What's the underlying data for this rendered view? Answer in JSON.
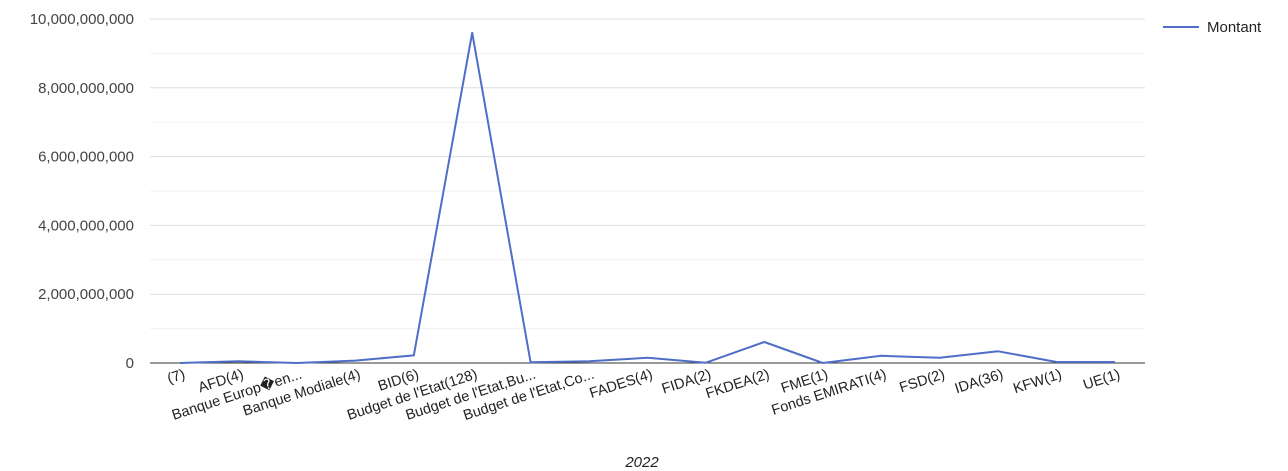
{
  "chart_data": {
    "type": "line",
    "xlabel": "2022",
    "ylabel": "",
    "ylim": [
      0,
      10000000000
    ],
    "yticks": [
      0,
      2000000000,
      4000000000,
      6000000000,
      8000000000,
      10000000000
    ],
    "ytick_labels": [
      "0",
      "2,000,000,000",
      "4,000,000,000",
      "6,000,000,000",
      "8,000,000,000",
      "10,000,000,000"
    ],
    "grid": true,
    "legend_position": "top-right",
    "categories": [
      "(7)",
      "AFD(4)",
      "Banque Europ�en...",
      "Banque Modiale(4)",
      "BID(6)",
      "Budget de l'Etat(128)",
      "Budget de l'Etat,Bu...",
      "Budget de l'Etat,Co...",
      "FADES(4)",
      "FIDA(2)",
      "FKDEA(2)",
      "FME(1)",
      "Fonds EMIRATI(4)",
      "FSD(2)",
      "IDA(36)",
      "KFW(1)",
      "UE(1)"
    ],
    "series": [
      {
        "name": "Montant",
        "color": "#4e6ec7",
        "values": [
          0,
          50000000,
          0,
          70000000,
          220000000,
          9600000000,
          20000000,
          50000000,
          150000000,
          10000000,
          610000000,
          0,
          210000000,
          150000000,
          340000000,
          30000000,
          30000000
        ]
      }
    ]
  }
}
